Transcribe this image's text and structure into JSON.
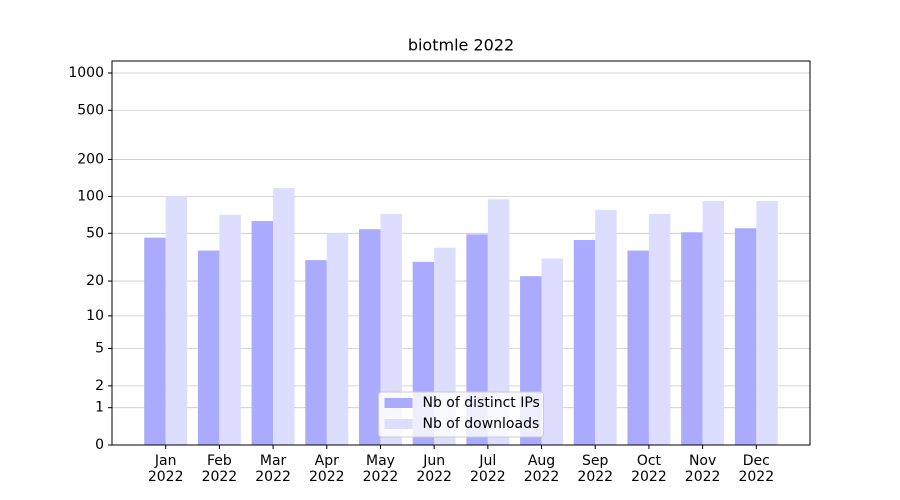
{
  "chart_data": {
    "type": "bar",
    "title": "biotmle 2022",
    "categories": [
      "Jan 2022",
      "Feb 2022",
      "Mar 2022",
      "Apr 2022",
      "May 2022",
      "Jun 2022",
      "Jul 2022",
      "Aug 2022",
      "Sep 2022",
      "Oct 2022",
      "Nov 2022",
      "Dec 2022"
    ],
    "series": [
      {
        "name": "Nb of distinct IPs",
        "color": "#aaaaff",
        "values": [
          46,
          36,
          63,
          30,
          54,
          29,
          49,
          22,
          44,
          36,
          51,
          55
        ]
      },
      {
        "name": "Nb of downloads",
        "color": "#ddddff",
        "values": [
          100,
          71,
          117,
          50,
          72,
          38,
          95,
          31,
          78,
          72,
          92,
          92
        ]
      }
    ],
    "yscale": "log1p",
    "ylim": [
      0,
      1250
    ],
    "yticks": [
      0,
      1,
      2,
      5,
      10,
      20,
      50,
      100,
      200,
      500,
      1000
    ],
    "grid": true,
    "legend": "lower center"
  }
}
